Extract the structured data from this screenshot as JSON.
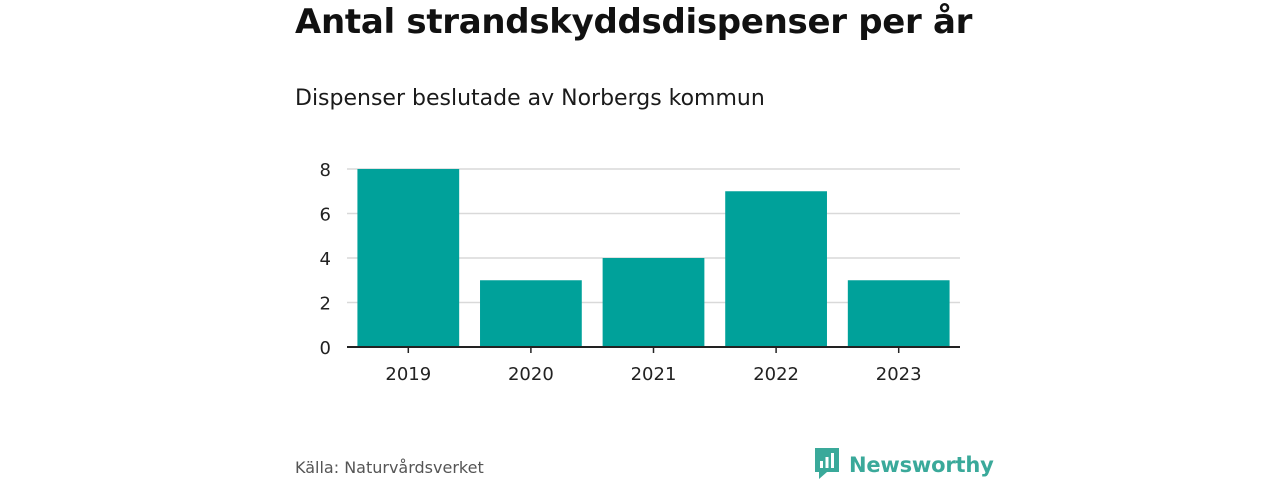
{
  "header": {
    "title": "Antal strandskyddsdispenser per år",
    "subtitle": "Dispenser beslutade av Norbergs kommun"
  },
  "footer": {
    "source": "Källa: Naturvårdsverket",
    "brand": "Newsworthy",
    "brand_icon": "newsworthy-logo-icon"
  },
  "colors": {
    "bar": "#00a19a",
    "grid": "#d9d9d9",
    "axis": "#222222",
    "brand": "#3aa99a"
  },
  "chart_data": {
    "type": "bar",
    "title": "Antal strandskyddsdispenser per år",
    "subtitle": "Dispenser beslutade av Norbergs kommun",
    "categories": [
      "2019",
      "2020",
      "2021",
      "2022",
      "2023"
    ],
    "values": [
      8,
      3,
      4,
      7,
      3
    ],
    "xlabel": "",
    "ylabel": "",
    "ylim": [
      0,
      8
    ],
    "yticks": [
      0,
      2,
      4,
      6,
      8
    ],
    "grid": true,
    "legend": "none"
  }
}
